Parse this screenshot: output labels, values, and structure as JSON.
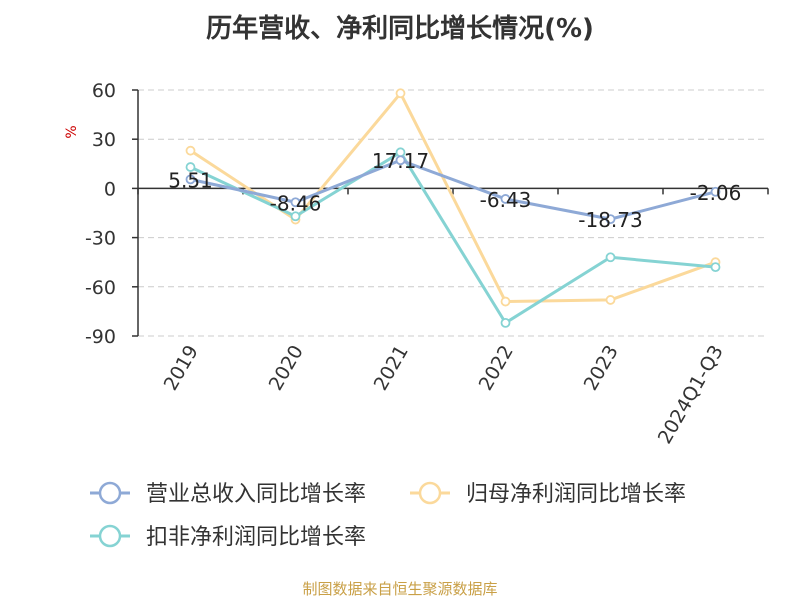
{
  "chart_data": {
    "type": "line",
    "title": "历年营收、净利同比增长情况(%)",
    "ylabel": "%",
    "categories": [
      "2019",
      "2020",
      "2021",
      "2022",
      "2023",
      "2024Q1-Q3"
    ],
    "ylim": [
      -90,
      60
    ],
    "yticks": [
      60,
      30,
      0,
      -30,
      -60,
      -90
    ],
    "grid": true,
    "legend_position": "bottom",
    "series": [
      {
        "name": "营业总收入同比增长率",
        "color": "#8ea9d6",
        "values": [
          5.51,
          -8.46,
          17.17,
          -6.43,
          -18.73,
          -2.06
        ],
        "data_labels": [
          "5.51",
          "-8.46",
          "17.17",
          "-6.43",
          "-18.73",
          "-2.06"
        ]
      },
      {
        "name": "归母净利润同比增长率",
        "color": "#fbd99b",
        "values": [
          23,
          -19,
          58,
          -69,
          -68,
          -45
        ]
      },
      {
        "name": "扣非净利润同比增长率",
        "color": "#85d3d3",
        "values": [
          13,
          -17,
          22,
          -82,
          -42,
          -48
        ]
      }
    ]
  },
  "source": "制图数据来自恒生聚源数据库"
}
